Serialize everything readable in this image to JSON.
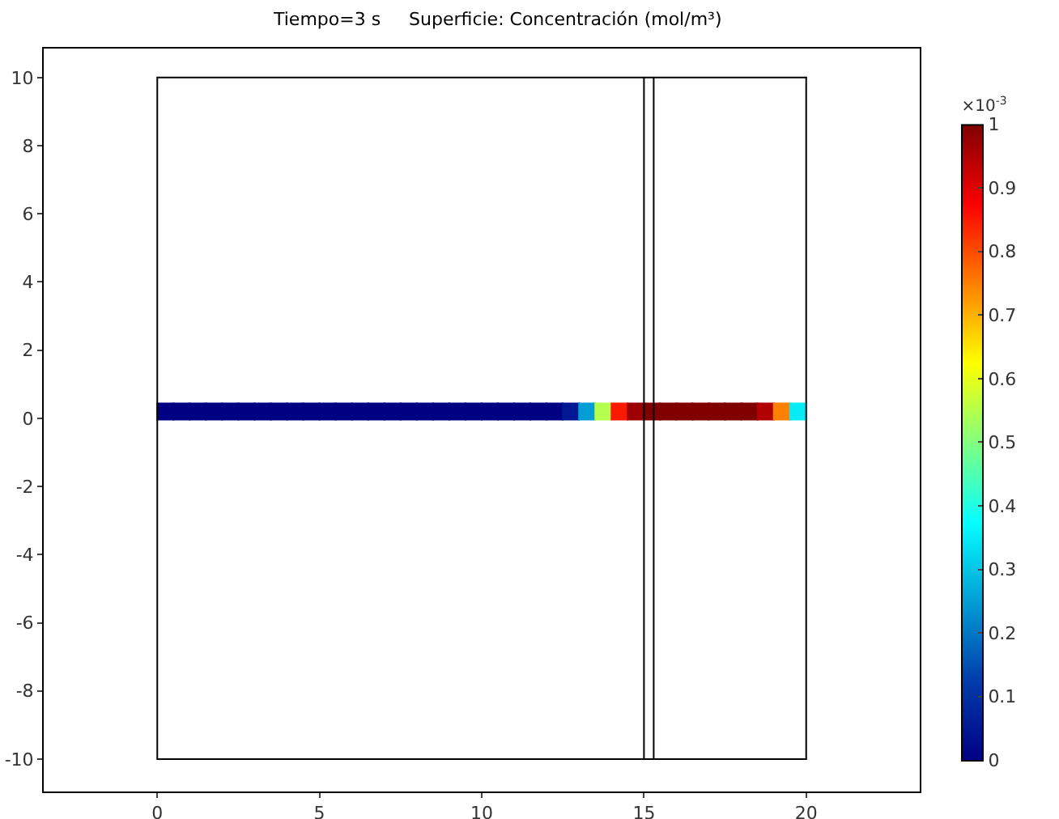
{
  "chart_data": {
    "type": "scatter",
    "title": "Tiempo=3 s     Superficie: Concentración (mol/m³)",
    "clabel": "×10$^{-3}$",
    "clim": [
      0,
      1
    ],
    "cticks": [
      0,
      0.1,
      0.2,
      0.3,
      0.4,
      0.5,
      0.6,
      0.7,
      0.8,
      0.9,
      1
    ],
    "xlim": [
      -3.5,
      23.5
    ],
    "xticks": [
      0,
      5,
      10,
      15,
      20
    ],
    "ylim": [
      -10.95,
      10.85
    ],
    "yticks": [
      -10,
      -8,
      -6,
      -4,
      -2,
      0,
      2,
      4,
      6,
      8,
      10
    ],
    "series": [
      {
        "marker": "square",
        "x": [
          0.25,
          0.75,
          1.25,
          1.75,
          2.25,
          2.75,
          3.25,
          3.75,
          4.25,
          4.75,
          5.25,
          5.75,
          6.25,
          6.75,
          7.25,
          7.75,
          8.25,
          8.75,
          9.25,
          9.75,
          10.25,
          10.75,
          11.25,
          11.75,
          12.25,
          12.75,
          13.25,
          13.75,
          14.25,
          14.75,
          15.25,
          15.75,
          16.25,
          16.75,
          17.25,
          17.75,
          18.25,
          18.75,
          19.25,
          19.75
        ],
        "values": [
          0.2,
          0.2,
          0.2,
          0.2,
          0.2,
          0.2,
          0.2,
          0.2,
          0.2,
          0.2,
          0.2,
          0.2,
          0.2,
          0.2,
          0.2,
          0.2,
          0.2,
          0.2,
          0.2,
          0.2,
          0.2,
          0.2,
          0.2,
          0.2,
          0.2,
          0.2,
          0.2,
          0.2,
          0.2,
          0.2,
          0.2,
          0.2,
          0.2,
          0.2,
          0.2,
          0.2,
          0.2,
          0.2,
          0.2,
          0.2
        ],
        "colors": [
          "#000083",
          "#000083",
          "#000083",
          "#000083",
          "#000083",
          "#000083",
          "#000083",
          "#000083",
          "#000083",
          "#000083",
          "#000083",
          "#000083",
          "#000083",
          "#000083",
          "#000083",
          "#000083",
          "#000083",
          "#000083",
          "#000083",
          "#000083",
          "#000083",
          "#000083",
          "#000083",
          "#000083",
          "#000083",
          "#001893",
          "#039ed5",
          "#b4ff4d",
          "#fa1a00",
          "#9d0000",
          "#800000",
          "#800000",
          "#800000",
          "#800000",
          "#800000",
          "#800000",
          "#800000",
          "#b10000",
          "#fd8000",
          "#05ecf7"
        ]
      },
      {
        "type": "line",
        "color": "#000000",
        "x": [
          0,
          20
        ],
        "values": [
          -10,
          -10
        ]
      },
      {
        "type": "line",
        "color": "#000000",
        "x": [
          0,
          20
        ],
        "values": [
          10,
          10
        ]
      },
      {
        "type": "line",
        "color": "#000000",
        "x": [
          0,
          0
        ],
        "values": [
          -10,
          10
        ]
      },
      {
        "type": "line",
        "color": "#000000",
        "x": [
          15,
          15
        ],
        "values": [
          -10,
          10
        ]
      },
      {
        "type": "line",
        "color": "#000000",
        "x": [
          15.3,
          15.3
        ],
        "values": [
          -10,
          10
        ]
      },
      {
        "type": "line",
        "color": "#000000",
        "x": [
          20,
          20
        ],
        "values": [
          -10,
          10
        ]
      }
    ]
  }
}
